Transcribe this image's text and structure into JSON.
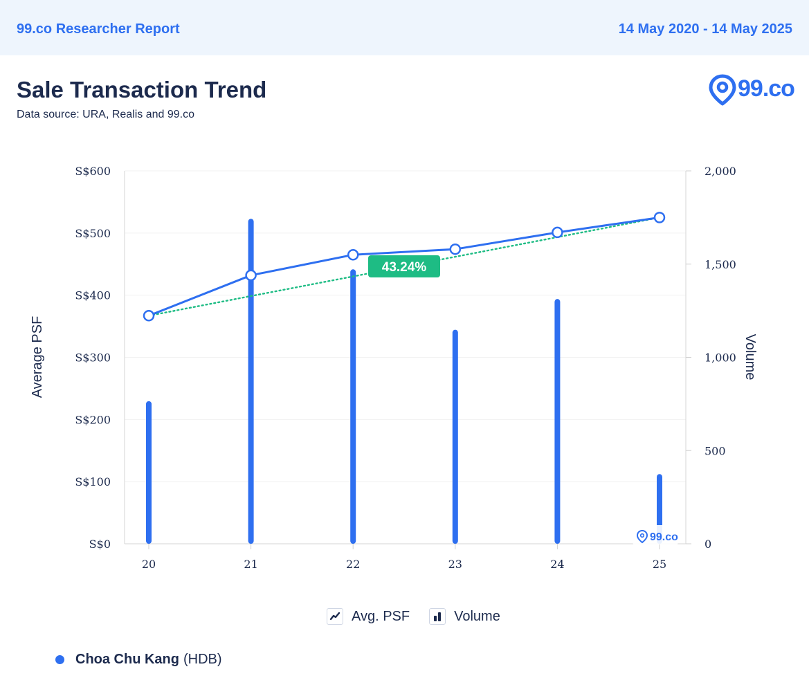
{
  "header": {
    "brand": "99.co Researcher Report",
    "date_range": "14 May 2020 - 14 May 2025"
  },
  "title": "Sale Transaction Trend",
  "source": "Data source: URA, Realis and 99.co",
  "logo": {
    "text": "99.co",
    "icon": "map-pin-icon"
  },
  "watermark": {
    "text": "99.co"
  },
  "legend": {
    "psf_label": "Avg. PSF",
    "volume_label": "Volume"
  },
  "location": {
    "name": "Choa Chu Kang",
    "type": "(HDB)"
  },
  "colors": {
    "accent": "#2e6ff0",
    "trend": "#1ebc84",
    "text": "#1c2a4d"
  },
  "chart_data": {
    "type": "bar",
    "categories": [
      "20",
      "21",
      "22",
      "23",
      "24",
      "25"
    ],
    "series": [
      {
        "name": "Volume",
        "type": "bar",
        "axis": "right",
        "values": [
          765,
          1743,
          1472,
          1148,
          1313,
          374
        ]
      },
      {
        "name": "Avg. PSF",
        "type": "line",
        "axis": "left",
        "values": [
          367,
          432,
          465,
          474,
          501,
          525
        ]
      }
    ],
    "trend": {
      "from": 367,
      "to": 525,
      "label": "43.24%"
    },
    "ylabel": "Average PSF",
    "y2label": "Volume",
    "ylim": [
      0,
      600
    ],
    "y2lim": [
      0,
      2000
    ],
    "yticks": [
      "S$0",
      "S$100",
      "S$200",
      "S$300",
      "S$400",
      "S$500",
      "S$600"
    ],
    "y2ticks": [
      "0",
      "500",
      "1,000",
      "1,500",
      "2,000"
    ]
  }
}
